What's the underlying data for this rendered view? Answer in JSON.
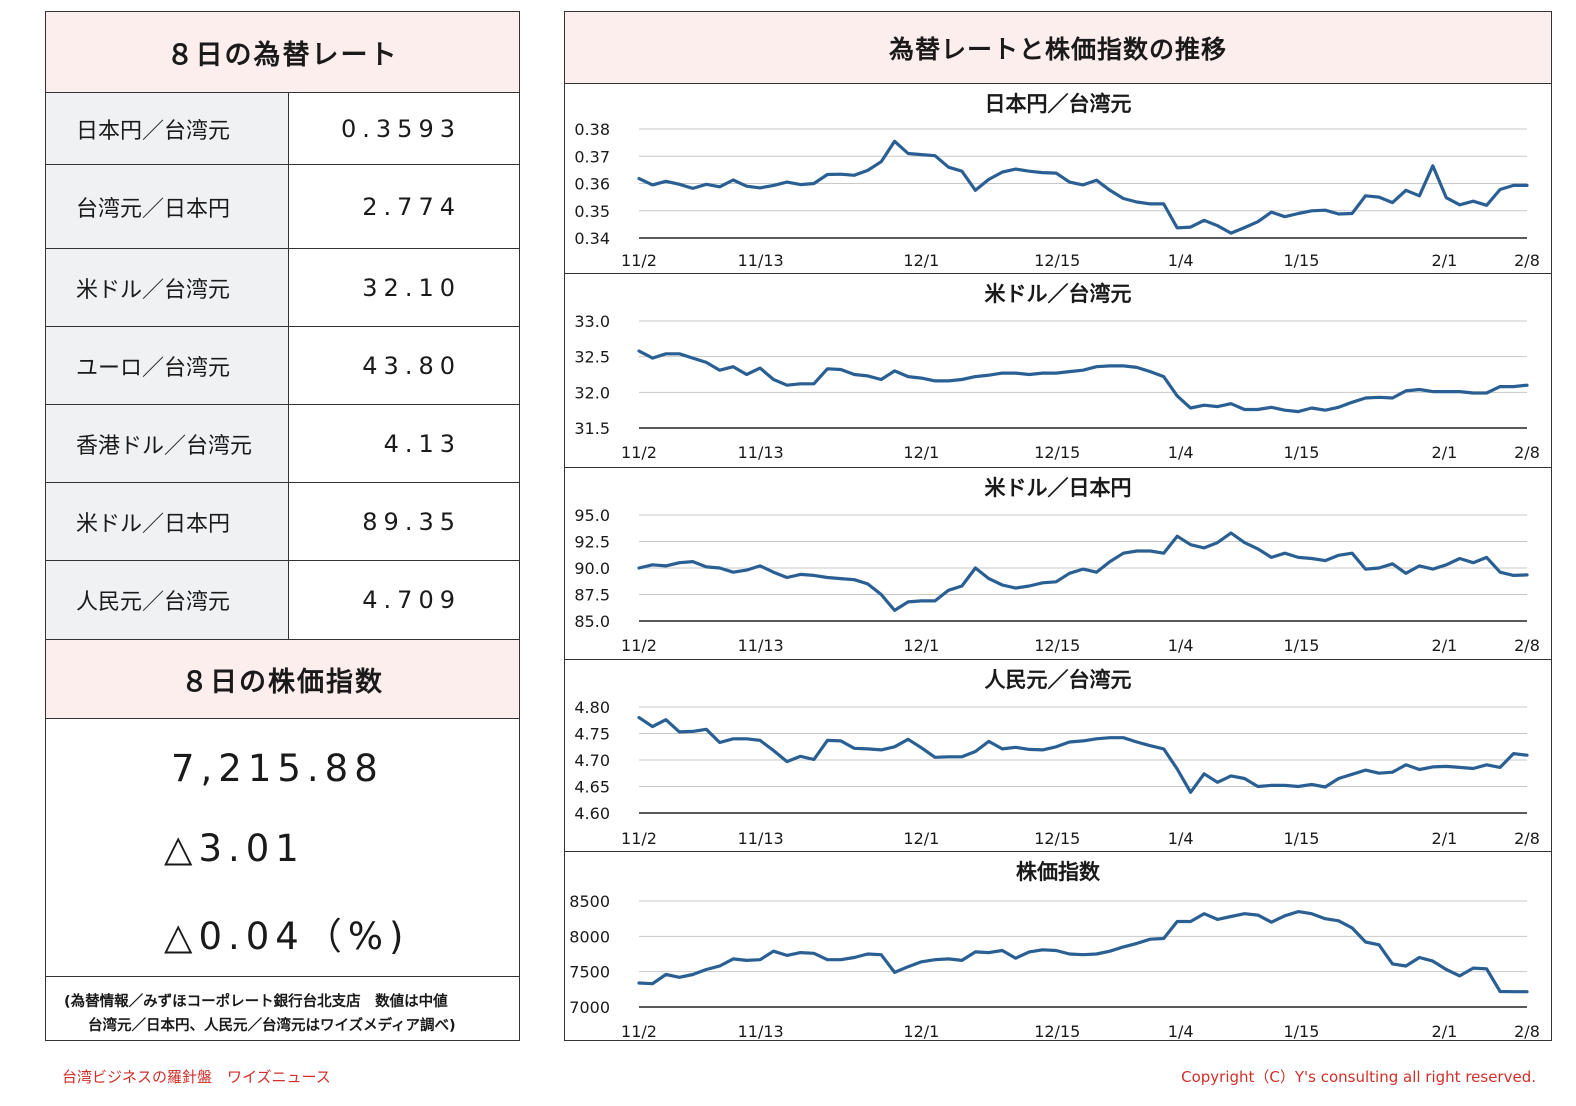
{
  "left": {
    "rates_title": "８日の為替レート",
    "rates": [
      {
        "label": "日本円／台湾元",
        "value": "0.3593"
      },
      {
        "label": "台湾元／日本円",
        "value": "2.774"
      },
      {
        "label": "米ドル／台湾元",
        "value": "32.10"
      },
      {
        "label": "ユーロ／台湾元",
        "value": "43.80"
      },
      {
        "label": "香港ドル／台湾元",
        "value": "4.13"
      },
      {
        "label": "米ドル／日本円",
        "value": "89.35"
      },
      {
        "label": "人民元／台湾元",
        "value": "4.709"
      }
    ],
    "index_title": "８日の株価指数",
    "index_value": "7,215.88",
    "index_change": "△3.01",
    "index_change_pct": "△0.04（%)",
    "source_line1": "(為替情報／みずほコーポレート銀行台北支店　数値は中値",
    "source_line2": "台湾元／日本円、人民元／台湾元はワイズメディア調べ)"
  },
  "right": {
    "title": "為替レートと株価指数の推移"
  },
  "footer": {
    "left": "台湾ビジネスの羅針盤　ワイズニュース",
    "right": "Copyright（C）Y's consulting all right reserved."
  },
  "colors": {
    "line": "#2a5f93",
    "header_bg": "#fdeeee",
    "label_bg": "#f0f1f3",
    "footer_text": "#d0302a",
    "grid": "#c8c8c8"
  },
  "chart_data": [
    {
      "type": "line",
      "title": "日本円／台湾元",
      "x_ticks": [
        "11/2",
        "11/13",
        "12/1",
        "12/15",
        "1/4",
        "1/15",
        "2/1",
        "2/8"
      ],
      "y_ticks": [
        "0.38",
        "0.37",
        "0.36",
        "0.35",
        "0.34"
      ],
      "ylim": [
        0.34,
        0.38
      ],
      "series": [
        {
          "values": [
            0.3618,
            0.3595,
            0.3608,
            0.3597,
            0.3582,
            0.3597,
            0.3588,
            0.3613,
            0.359,
            0.3584,
            0.3593,
            0.3605,
            0.3596,
            0.36,
            0.3633,
            0.3634,
            0.363,
            0.3648,
            0.368,
            0.3755,
            0.371,
            0.3706,
            0.3702,
            0.366,
            0.3645,
            0.3575,
            0.3615,
            0.3642,
            0.3653,
            0.3645,
            0.364,
            0.3638,
            0.3605,
            0.3595,
            0.3612,
            0.3575,
            0.3545,
            0.3532,
            0.3525,
            0.3525,
            0.3437,
            0.344,
            0.3465,
            0.3445,
            0.3418,
            0.3438,
            0.346,
            0.3495,
            0.3478,
            0.349,
            0.35,
            0.3502,
            0.3488,
            0.349,
            0.3555,
            0.355,
            0.353,
            0.3575,
            0.3555,
            0.3665,
            0.3548,
            0.3522,
            0.3535,
            0.352,
            0.3578,
            0.3593,
            0.3593
          ]
        }
      ]
    },
    {
      "type": "line",
      "title": "米ドル／台湾元",
      "x_ticks": [
        "11/2",
        "11/13",
        "12/1",
        "12/15",
        "1/4",
        "1/15",
        "2/1",
        "2/8"
      ],
      "y_ticks": [
        "33.0",
        "32.5",
        "32.0",
        "31.5"
      ],
      "ylim": [
        31.5,
        33.0
      ],
      "series": [
        {
          "values": [
            32.58,
            32.48,
            32.54,
            32.54,
            32.48,
            32.42,
            32.31,
            32.36,
            32.25,
            32.34,
            32.18,
            32.1,
            32.12,
            32.12,
            32.33,
            32.32,
            32.25,
            32.23,
            32.18,
            32.3,
            32.22,
            32.2,
            32.16,
            32.16,
            32.18,
            32.22,
            32.24,
            32.27,
            32.27,
            32.25,
            32.27,
            32.27,
            32.29,
            32.31,
            32.36,
            32.37,
            32.37,
            32.35,
            32.29,
            32.22,
            31.95,
            31.78,
            31.82,
            31.8,
            31.84,
            31.76,
            31.76,
            31.79,
            31.75,
            31.73,
            31.78,
            31.75,
            31.79,
            31.86,
            31.92,
            31.93,
            31.92,
            32.02,
            32.04,
            32.01,
            32.01,
            32.01,
            31.99,
            31.99,
            32.08,
            32.08,
            32.1
          ]
        }
      ]
    },
    {
      "type": "line",
      "title": "米ドル／日本円",
      "x_ticks": [
        "11/2",
        "11/13",
        "12/1",
        "12/15",
        "1/4",
        "1/15",
        "2/1",
        "2/8"
      ],
      "y_ticks": [
        "95.0",
        "92.5",
        "90.0",
        "87.5",
        "85.0"
      ],
      "ylim": [
        85.0,
        95.0
      ],
      "series": [
        {
          "values": [
            90.0,
            90.3,
            90.2,
            90.5,
            90.6,
            90.1,
            90.0,
            89.6,
            89.8,
            90.2,
            89.6,
            89.1,
            89.4,
            89.3,
            89.1,
            89.0,
            88.9,
            88.5,
            87.5,
            86.0,
            86.8,
            86.9,
            86.9,
            87.9,
            88.3,
            90.0,
            89.0,
            88.4,
            88.1,
            88.3,
            88.6,
            88.7,
            89.5,
            89.9,
            89.6,
            90.6,
            91.4,
            91.6,
            91.6,
            91.4,
            93.0,
            92.2,
            91.9,
            92.4,
            93.3,
            92.4,
            91.8,
            91.0,
            91.4,
            91.0,
            90.9,
            90.7,
            91.2,
            91.4,
            89.9,
            90.0,
            90.4,
            89.5,
            90.2,
            89.9,
            90.3,
            90.9,
            90.5,
            91.0,
            89.6,
            89.3,
            89.35
          ]
        }
      ]
    },
    {
      "type": "line",
      "title": "人民元／台湾元",
      "x_ticks": [
        "11/2",
        "11/13",
        "12/1",
        "12/15",
        "1/4",
        "1/15",
        "2/1",
        "2/8"
      ],
      "y_ticks": [
        "4.80",
        "4.75",
        "4.70",
        "4.65",
        "4.60"
      ],
      "ylim": [
        4.6,
        4.8
      ],
      "series": [
        {
          "values": [
            4.78,
            4.763,
            4.776,
            4.753,
            4.754,
            4.758,
            4.733,
            4.74,
            4.74,
            4.737,
            4.718,
            4.697,
            4.707,
            4.701,
            4.737,
            4.736,
            4.722,
            4.721,
            4.719,
            4.725,
            4.739,
            4.723,
            4.705,
            4.706,
            4.706,
            4.716,
            4.735,
            4.721,
            4.724,
            4.72,
            4.719,
            4.725,
            4.734,
            4.736,
            4.74,
            4.742,
            4.742,
            4.734,
            4.727,
            4.721,
            4.683,
            4.639,
            4.674,
            4.658,
            4.67,
            4.665,
            4.65,
            4.652,
            4.652,
            4.65,
            4.654,
            4.649,
            4.665,
            4.673,
            4.681,
            4.675,
            4.677,
            4.691,
            4.682,
            4.687,
            4.688,
            4.686,
            4.684,
            4.691,
            4.686,
            4.712,
            4.709
          ]
        }
      ]
    },
    {
      "type": "line",
      "title": "株価指数",
      "x_ticks": [
        "11/2",
        "11/13",
        "12/1",
        "12/15",
        "1/4",
        "1/15",
        "2/1",
        "2/8"
      ],
      "y_ticks": [
        "8500",
        "8000",
        "7500",
        "7000"
      ],
      "ylim": [
        7000,
        8500
      ],
      "series": [
        {
          "values": [
            7340,
            7330,
            7460,
            7420,
            7460,
            7530,
            7580,
            7680,
            7660,
            7670,
            7790,
            7730,
            7770,
            7760,
            7670,
            7670,
            7700,
            7750,
            7740,
            7490,
            7570,
            7640,
            7670,
            7680,
            7660,
            7780,
            7770,
            7800,
            7690,
            7780,
            7810,
            7800,
            7750,
            7740,
            7750,
            7790,
            7850,
            7900,
            7960,
            7970,
            8210,
            8210,
            8320,
            8240,
            8280,
            8320,
            8300,
            8200,
            8290,
            8350,
            8320,
            8250,
            8220,
            8120,
            7920,
            7880,
            7610,
            7580,
            7700,
            7650,
            7530,
            7440,
            7550,
            7540,
            7220,
            7216,
            7216
          ]
        }
      ]
    }
  ]
}
